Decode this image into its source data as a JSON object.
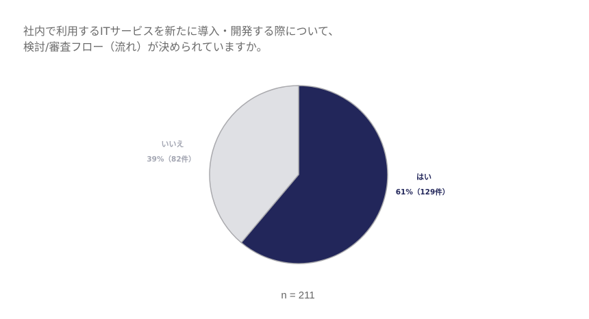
{
  "chart_data": {
    "type": "pie",
    "title_lines": [
      "社内で利用するITサービスを新たに導入・開発する際について、",
      "検討/審査フロー（流れ）が決められていますか。"
    ],
    "slices": [
      {
        "name": "はい",
        "value": 129,
        "percent_label": "61%（129件）",
        "color": "#22265a",
        "label_color": "#22265a"
      },
      {
        "name": "いいえ",
        "value": 82,
        "percent_label": "39%（82件）",
        "color": "#dfe0e4",
        "label_color": "#a3a6b2"
      }
    ],
    "note": "n = 211"
  }
}
